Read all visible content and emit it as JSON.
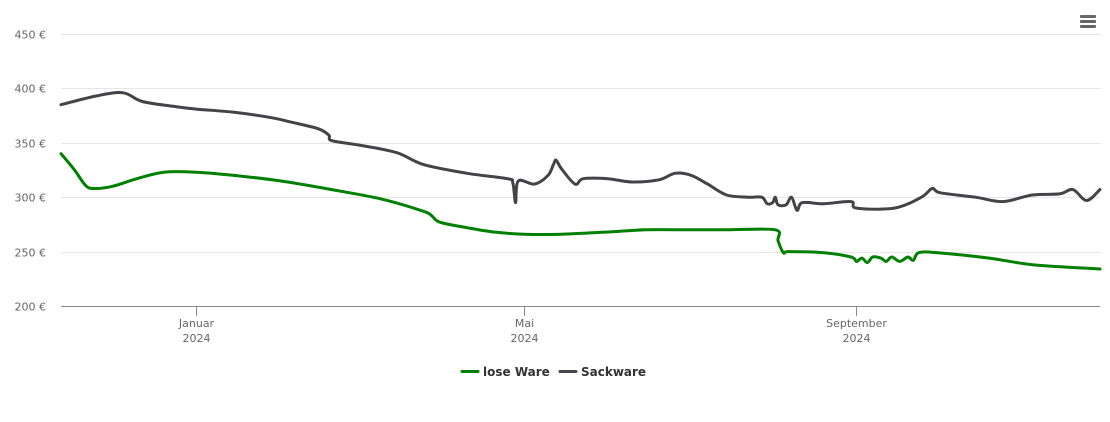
{
  "chart_data": {
    "type": "line",
    "title": "",
    "xlabel": "",
    "ylabel": "",
    "ylim": [
      200,
      450
    ],
    "y_ticks": [
      {
        "value": 200,
        "label": "200 €"
      },
      {
        "value": 250,
        "label": "250 €"
      },
      {
        "value": 300,
        "label": "300 €"
      },
      {
        "value": 350,
        "label": "350 €"
      },
      {
        "value": 400,
        "label": "400 €"
      },
      {
        "value": 450,
        "label": "450 €"
      }
    ],
    "xlim": [
      "2023-11-12",
      "2024-11-30"
    ],
    "x_ticks": [
      {
        "date": "2024-01-01",
        "line1": "Januar",
        "line2": "2024"
      },
      {
        "date": "2024-05-01",
        "line1": "Mai",
        "line2": "2024"
      },
      {
        "date": "2024-09-01",
        "line1": "September",
        "line2": "2024"
      }
    ],
    "grid": true,
    "legend": "bottom-center",
    "series": [
      {
        "name": "lose Ware",
        "color": "#008000",
        "points": [
          [
            "2023-11-12",
            340
          ],
          [
            "2023-11-17",
            325
          ],
          [
            "2023-11-21",
            311
          ],
          [
            "2023-11-24",
            308
          ],
          [
            "2023-12-01",
            310
          ],
          [
            "2023-12-10",
            317
          ],
          [
            "2023-12-20",
            323
          ],
          [
            "2024-01-01",
            323
          ],
          [
            "2024-01-15",
            320
          ],
          [
            "2024-02-01",
            315
          ],
          [
            "2024-02-20",
            307
          ],
          [
            "2024-03-10",
            298
          ],
          [
            "2024-03-25",
            287
          ],
          [
            "2024-03-28",
            283
          ],
          [
            "2024-03-31",
            277
          ],
          [
            "2024-04-10",
            272
          ],
          [
            "2024-04-20",
            268
          ],
          [
            "2024-05-01",
            266
          ],
          [
            "2024-05-15",
            266
          ],
          [
            "2024-06-01",
            268
          ],
          [
            "2024-06-15",
            270
          ],
          [
            "2024-07-01",
            270
          ],
          [
            "2024-07-15",
            270
          ],
          [
            "2024-08-02",
            270
          ],
          [
            "2024-08-03",
            260
          ],
          [
            "2024-08-05",
            249
          ],
          [
            "2024-08-07",
            250
          ],
          [
            "2024-08-20",
            249
          ],
          [
            "2024-08-30",
            245
          ],
          [
            "2024-09-01",
            241
          ],
          [
            "2024-09-03",
            244
          ],
          [
            "2024-09-05",
            240
          ],
          [
            "2024-09-07",
            245
          ],
          [
            "2024-09-10",
            244
          ],
          [
            "2024-09-12",
            241
          ],
          [
            "2024-09-14",
            245
          ],
          [
            "2024-09-17",
            241
          ],
          [
            "2024-09-20",
            245
          ],
          [
            "2024-09-22",
            242
          ],
          [
            "2024-09-24",
            249
          ],
          [
            "2024-10-01",
            249
          ],
          [
            "2024-10-20",
            244
          ],
          [
            "2024-11-05",
            238
          ],
          [
            "2024-11-30",
            234
          ]
        ]
      },
      {
        "name": "Sackware",
        "color": "#434348",
        "points": [
          [
            "2023-11-12",
            385
          ],
          [
            "2023-11-25",
            393
          ],
          [
            "2023-12-05",
            396
          ],
          [
            "2023-12-12",
            388
          ],
          [
            "2023-12-25",
            383
          ],
          [
            "2024-01-01",
            381
          ],
          [
            "2024-01-15",
            378
          ],
          [
            "2024-01-29",
            373
          ],
          [
            "2024-02-05",
            369
          ],
          [
            "2024-02-15",
            363
          ],
          [
            "2024-02-19",
            357
          ],
          [
            "2024-02-20",
            352
          ],
          [
            "2024-03-01",
            348
          ],
          [
            "2024-03-15",
            341
          ],
          [
            "2024-03-25",
            330
          ],
          [
            "2024-04-10",
            322
          ],
          [
            "2024-04-25",
            317
          ],
          [
            "2024-04-27",
            313
          ],
          [
            "2024-04-28",
            295
          ],
          [
            "2024-04-29",
            315
          ],
          [
            "2024-05-05",
            312
          ],
          [
            "2024-05-10",
            320
          ],
          [
            "2024-05-12",
            330
          ],
          [
            "2024-05-13",
            334
          ],
          [
            "2024-05-15",
            326
          ],
          [
            "2024-05-20",
            312
          ],
          [
            "2024-05-23",
            317
          ],
          [
            "2024-06-01",
            317
          ],
          [
            "2024-06-10",
            314
          ],
          [
            "2024-06-20",
            316
          ],
          [
            "2024-06-26",
            322
          ],
          [
            "2024-07-02",
            320
          ],
          [
            "2024-07-08",
            312
          ],
          [
            "2024-07-15",
            302
          ],
          [
            "2024-07-23",
            300
          ],
          [
            "2024-07-28",
            300
          ],
          [
            "2024-07-30",
            294
          ],
          [
            "2024-08-01",
            295
          ],
          [
            "2024-08-02",
            300
          ],
          [
            "2024-08-03",
            293
          ],
          [
            "2024-08-06",
            293
          ],
          [
            "2024-08-08",
            300
          ],
          [
            "2024-08-10",
            288
          ],
          [
            "2024-08-12",
            295
          ],
          [
            "2024-08-20",
            294
          ],
          [
            "2024-08-30",
            296
          ],
          [
            "2024-09-01",
            290
          ],
          [
            "2024-09-15",
            290
          ],
          [
            "2024-09-25",
            300
          ],
          [
            "2024-09-29",
            308
          ],
          [
            "2024-10-02",
            304
          ],
          [
            "2024-10-15",
            300
          ],
          [
            "2024-10-25",
            296
          ],
          [
            "2024-11-05",
            302
          ],
          [
            "2024-11-15",
            303
          ],
          [
            "2024-11-20",
            307
          ],
          [
            "2024-11-25",
            297
          ],
          [
            "2024-11-30",
            307
          ]
        ]
      }
    ]
  }
}
